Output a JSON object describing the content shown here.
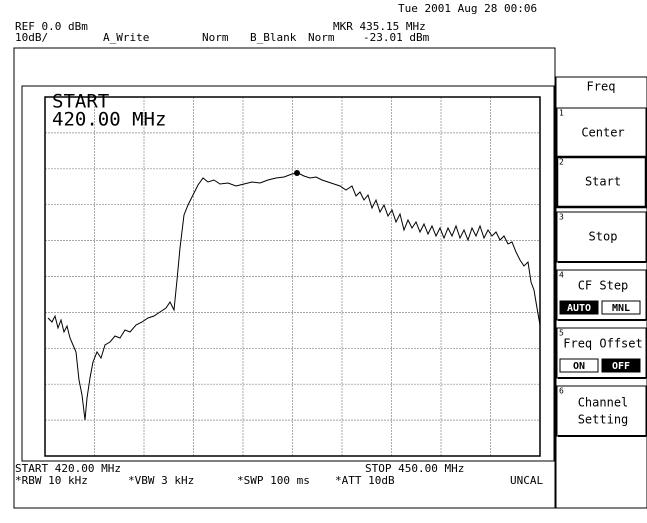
{
  "status": {
    "datetime": "Tue 2001 Aug 28 00:06"
  },
  "header": {
    "ref": "REF 0.0 dBm",
    "scale": "10dB/",
    "trace_a": "A_Write",
    "trace_a_mode": "Norm",
    "trace_b": "B_Blank",
    "trace_b_mode": "Norm",
    "marker_freq": "MKR 435.15 MHz",
    "marker_level": "-23.01 dBm"
  },
  "graticule_annotation": {
    "label": "START",
    "value": "420.00 MHz"
  },
  "footer": {
    "start": "START 420.00 MHz",
    "stop": "STOP 450.00 MHz",
    "rbw": "*RBW 10 kHz",
    "vbw": "*VBW 3 kHz",
    "swp": "*SWP 100 ms",
    "att": "*ATT 10dB",
    "uncal": "UNCAL"
  },
  "softkeys": {
    "menu": "Freq",
    "keys": [
      {
        "number": "1",
        "label": "Center"
      },
      {
        "number": "2",
        "label": "Start"
      },
      {
        "number": "3",
        "label": "Stop"
      },
      {
        "number": "4",
        "label": "CF Step",
        "options": [
          "AUTO",
          "MNL"
        ]
      },
      {
        "number": "5",
        "label": "Freq Offset",
        "options": [
          "ON",
          "OFF"
        ]
      },
      {
        "number": "6",
        "label": "Channel",
        "label2": "Setting"
      }
    ]
  }
}
